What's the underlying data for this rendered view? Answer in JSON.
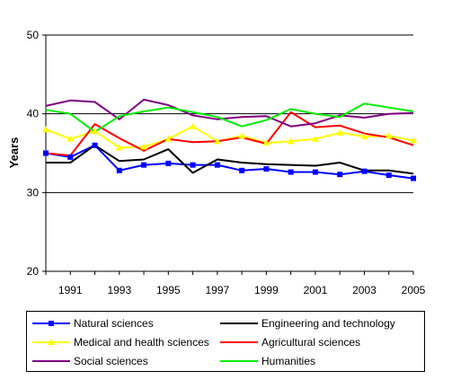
{
  "chart_data": {
    "type": "line",
    "ylabel": "Years",
    "ylim": [
      20,
      50
    ],
    "yticks": [
      20,
      30,
      40,
      50
    ],
    "xlim": [
      1990,
      2005
    ],
    "xticks": [
      1991,
      1993,
      1995,
      1997,
      1999,
      2001,
      2003,
      2005
    ],
    "grid": "horizontal",
    "legend_position": "bottom",
    "x": [
      1990,
      1991,
      1992,
      1993,
      1994,
      1995,
      1996,
      1997,
      1998,
      1999,
      2000,
      2001,
      2002,
      2003,
      2004,
      2005
    ],
    "series": [
      {
        "name": "Natural sciences",
        "color": "#0000ff",
        "marker": "square",
        "values": [
          35.0,
          34.5,
          36.0,
          32.8,
          33.5,
          33.7,
          33.5,
          33.5,
          32.8,
          33.0,
          32.6,
          32.6,
          32.3,
          32.7,
          32.2,
          31.8
        ]
      },
      {
        "name": "Engineering and technology",
        "color": "#000000",
        "marker": "none",
        "values": [
          33.8,
          33.8,
          36.0,
          34.0,
          34.2,
          35.5,
          32.5,
          34.2,
          33.8,
          33.6,
          33.5,
          33.4,
          33.8,
          32.8,
          32.8,
          32.4
        ]
      },
      {
        "name": "Medical and health sciences",
        "color": "#ffff00",
        "marker": "triangle",
        "values": [
          38.0,
          36.8,
          37.8,
          35.7,
          35.8,
          36.8,
          38.4,
          36.5,
          37.2,
          36.3,
          36.5,
          36.8,
          37.6,
          37.1,
          37.2,
          36.6
        ]
      },
      {
        "name": "Agricultural sciences",
        "color": "#ff0000",
        "marker": "none",
        "values": [
          35.0,
          34.7,
          38.7,
          36.9,
          35.3,
          36.8,
          36.4,
          36.5,
          37.0,
          36.2,
          40.2,
          38.3,
          38.5,
          37.5,
          37.0,
          36.0
        ]
      },
      {
        "name": "Social sciences",
        "color": "#800080",
        "marker": "none",
        "values": [
          41.0,
          41.7,
          41.5,
          39.3,
          41.8,
          41.1,
          39.8,
          39.3,
          39.6,
          39.7,
          38.4,
          38.8,
          39.8,
          39.5,
          40.0,
          40.1
        ]
      },
      {
        "name": "Humanities",
        "color": "#00ee00",
        "marker": "none",
        "values": [
          40.5,
          40.0,
          37.7,
          39.7,
          40.3,
          40.8,
          40.2,
          39.6,
          38.4,
          39.2,
          40.6,
          40.0,
          39.6,
          41.3,
          40.8,
          40.3
        ]
      }
    ]
  }
}
